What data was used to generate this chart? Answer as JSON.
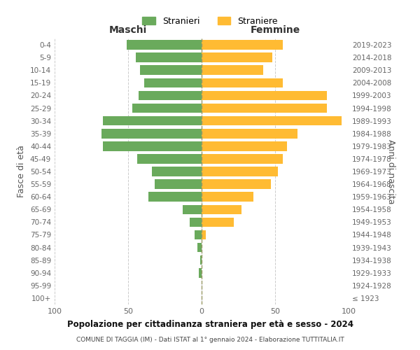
{
  "age_groups": [
    "100+",
    "95-99",
    "90-94",
    "85-89",
    "80-84",
    "75-79",
    "70-74",
    "65-69",
    "60-64",
    "55-59",
    "50-54",
    "45-49",
    "40-44",
    "35-39",
    "30-34",
    "25-29",
    "20-24",
    "15-19",
    "10-14",
    "5-9",
    "0-4"
  ],
  "birth_years": [
    "≤ 1923",
    "1924-1928",
    "1929-1933",
    "1934-1938",
    "1939-1943",
    "1944-1948",
    "1949-1953",
    "1954-1958",
    "1959-1963",
    "1964-1968",
    "1969-1973",
    "1974-1978",
    "1979-1983",
    "1984-1988",
    "1989-1993",
    "1994-1998",
    "1999-2003",
    "2004-2008",
    "2009-2013",
    "2014-2018",
    "2019-2023"
  ],
  "maschi": [
    0,
    0,
    2,
    1,
    3,
    5,
    8,
    13,
    36,
    32,
    34,
    44,
    67,
    68,
    67,
    47,
    43,
    39,
    42,
    45,
    51
  ],
  "femmine": [
    0,
    0,
    0,
    0,
    0,
    3,
    22,
    27,
    35,
    47,
    52,
    55,
    58,
    65,
    95,
    85,
    85,
    55,
    42,
    48,
    55
  ],
  "maschi_color": "#6aaa5c",
  "femmine_color": "#ffbb33",
  "background_color": "#ffffff",
  "grid_color": "#cccccc",
  "title": "Popolazione per cittadinanza straniera per età e sesso - 2024",
  "subtitle": "COMUNE DI TAGGIA (IM) - Dati ISTAT al 1° gennaio 2024 - Elaborazione TUTTITALIA.IT",
  "ylabel_left": "Fasce di età",
  "ylabel_right": "Anni di nascita",
  "xlabel_left": "Maschi",
  "xlabel_right": "Femmine",
  "legend_stranieri": "Stranieri",
  "legend_straniere": "Straniere",
  "xlim": 100
}
